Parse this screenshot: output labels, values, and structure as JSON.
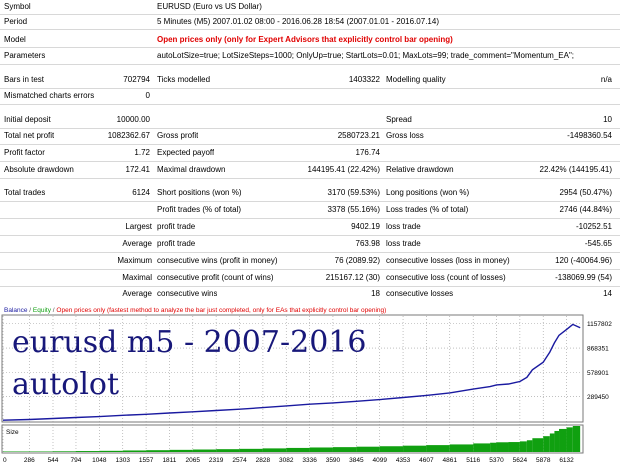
{
  "report": {
    "symbol": {
      "label": "Symbol",
      "value": "EURUSD (Euro vs US Dollar)"
    },
    "period": {
      "label": "Period",
      "value": "5 Minutes (M5) 2007.01.02 08:00 - 2016.06.28 18:54 (2007.01.01 - 2016.07.14)"
    },
    "model": {
      "label": "Model",
      "value": "Open prices only (only for Expert Advisors that explicitly control bar opening)"
    },
    "parameters": {
      "label": "Parameters",
      "value": "autoLotSize=true; LotSizeSteps=1000; OnlyUp=true; StartLots=0.01; MaxLots=99; trade_comment=\"Momentum_EA\";"
    },
    "bars_in_test": {
      "label": "Bars in test",
      "value": "702794"
    },
    "ticks_modelled": {
      "label": "Ticks modelled",
      "value": "1403322"
    },
    "modelling_quality": {
      "label": "Modelling quality",
      "value": "n/a"
    },
    "mismatched": {
      "label": "Mismatched charts errors",
      "value": "0"
    },
    "initial_deposit": {
      "label": "Initial deposit",
      "value": "10000.00"
    },
    "spread": {
      "label": "Spread",
      "value": "10"
    },
    "total_net_profit": {
      "label": "Total net profit",
      "value": "1082362.67"
    },
    "gross_profit": {
      "label": "Gross profit",
      "value": "2580723.21"
    },
    "gross_loss": {
      "label": "Gross loss",
      "value": "-1498360.54"
    },
    "profit_factor": {
      "label": "Profit factor",
      "value": "1.72"
    },
    "expected_payoff": {
      "label": "Expected payoff",
      "value": "176.74"
    },
    "absolute_drawdown": {
      "label": "Absolute drawdown",
      "value": "172.41"
    },
    "maximal_drawdown": {
      "label": "Maximal drawdown",
      "value": "144195.41 (22.42%)"
    },
    "relative_drawdown": {
      "label": "Relative drawdown",
      "value": "22.42% (144195.41)"
    },
    "total_trades": {
      "label": "Total trades",
      "value": "6124"
    },
    "short_positions": {
      "label": "Short positions (won %)",
      "value": "3170 (59.53%)"
    },
    "long_positions": {
      "label": "Long positions (won %)",
      "value": "2954 (50.47%)"
    },
    "profit_trades": {
      "label": "Profit trades (% of total)",
      "value": "3378 (55.16%)"
    },
    "loss_trades": {
      "label": "Loss trades (% of total)",
      "value": "2746 (44.84%)"
    },
    "largest": {
      "label": "Largest",
      "profit_label": "profit trade",
      "profit_value": "9402.19",
      "loss_label": "loss trade",
      "loss_value": "-10252.51"
    },
    "average": {
      "label": "Average",
      "profit_label": "profit trade",
      "profit_value": "763.98",
      "loss_label": "loss trade",
      "loss_value": "-545.65"
    },
    "maximum": {
      "label": "Maximum",
      "wins_label": "consecutive wins (profit in money)",
      "wins_value": "76 (2089.92)",
      "losses_label": "consecutive losses (loss in money)",
      "losses_value": "120 (-40064.96)"
    },
    "maximal": {
      "label": "Maximal",
      "profit_label": "consecutive profit (count of wins)",
      "profit_value": "215167.12 (30)",
      "loss_label": "consecutive loss (count of losses)",
      "loss_value": "-138069.99 (54)"
    },
    "average_consec": {
      "label": "Average",
      "wins_label": "consecutive wins",
      "wins_value": "18",
      "losses_label": "consecutive losses",
      "losses_value": "14"
    }
  },
  "chart": {
    "legend_balance": "Balance",
    "legend_equity": "Equity",
    "legend_note": "Open prices only (fastest method to analyze the bar just completed, only for EAs that explicitly control bar opening)",
    "overlay_line1": "eurusd m5 - 2007-2016",
    "overlay_line2": "autolot",
    "size_label": "Size",
    "balance_color": "#1a1aa0",
    "size_color": "#10a010"
  },
  "chart_data": {
    "type": "line",
    "y_ticks": [
      "1157802",
      "868351",
      "578901",
      "289450"
    ],
    "x_ticks": [
      "0",
      "286",
      "544",
      "794",
      "1048",
      "1303",
      "1557",
      "1811",
      "2065",
      "2319",
      "2574",
      "2828",
      "3082",
      "3336",
      "3590",
      "3845",
      "4099",
      "4353",
      "4607",
      "4861",
      "5116",
      "5370",
      "5624",
      "5878",
      "6132"
    ],
    "ylim": [
      0,
      1250000
    ],
    "xlim": [
      0,
      6300
    ],
    "series": [
      {
        "name": "Balance",
        "x": [
          0,
          286,
          544,
          794,
          1048,
          1303,
          1557,
          1811,
          2065,
          2319,
          2574,
          2828,
          3082,
          3336,
          3590,
          3845,
          4099,
          4353,
          4607,
          4861,
          5116,
          5300,
          5370,
          5500,
          5624,
          5700,
          5760,
          5878,
          5950,
          6000,
          6050,
          6132,
          6200,
          6280
        ],
        "y": [
          10000,
          18000,
          30000,
          42000,
          52000,
          68000,
          80000,
          95000,
          110000,
          125000,
          140000,
          160000,
          180000,
          200000,
          215000,
          235000,
          255000,
          280000,
          305000,
          335000,
          380000,
          410000,
          430000,
          440000,
          470000,
          520000,
          610000,
          700000,
          820000,
          930000,
          1020000,
          1090000,
          1150000,
          1110000
        ]
      }
    ]
  }
}
